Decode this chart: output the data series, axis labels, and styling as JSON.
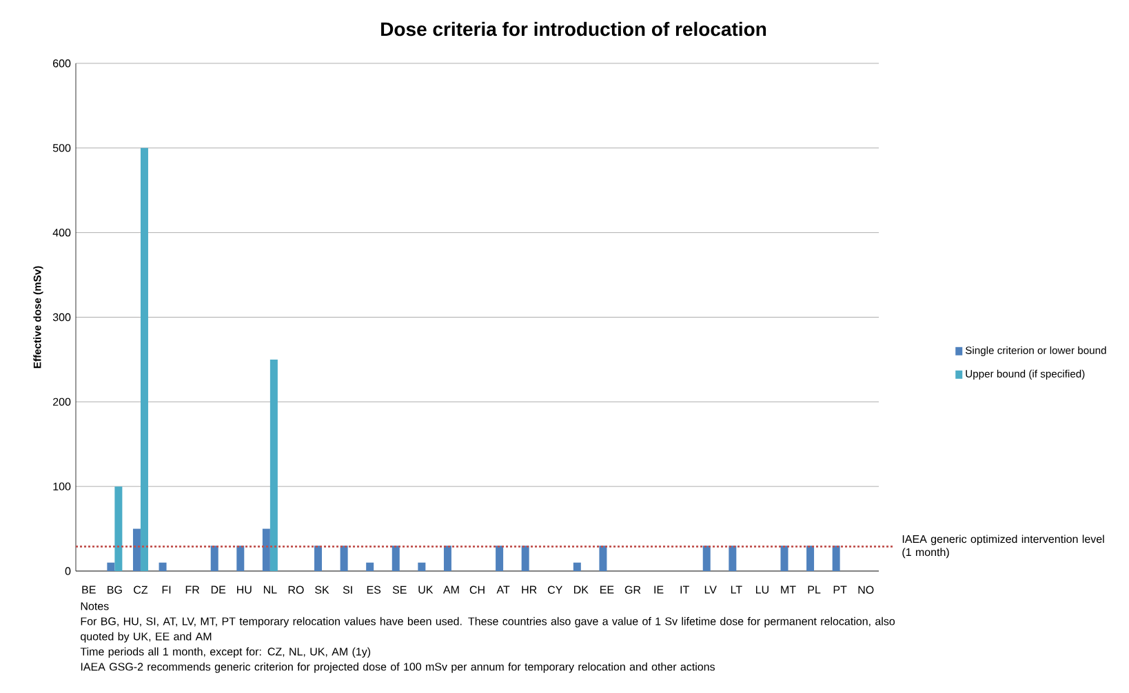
{
  "chart_data": {
    "type": "bar",
    "title": "Dose criteria for introduction of relocation",
    "ylabel": "Effective dose (mSv)",
    "categories": [
      "BE",
      "BG",
      "CZ",
      "FI",
      "FR",
      "DE",
      "HU",
      "NL",
      "RO",
      "SK",
      "SI",
      "ES",
      "SE",
      "UK",
      "AM",
      "CH",
      "AT",
      "HR",
      "CY",
      "DK",
      "EE",
      "GR",
      "IE",
      "IT",
      "LV",
      "LT",
      "LU",
      "MT",
      "PL",
      "PT",
      "NO"
    ],
    "series": [
      {
        "name": "Single criterion or lower bound",
        "color": "#4f81bd",
        "values": [
          null,
          10,
          50,
          10,
          null,
          30,
          30,
          50,
          null,
          30,
          30,
          10,
          30,
          10,
          30,
          null,
          30,
          30,
          null,
          10,
          30,
          null,
          null,
          null,
          30,
          30,
          null,
          30,
          30,
          30,
          null
        ]
      },
      {
        "name": "Upper bound (if specified)",
        "color": "#4bacc6",
        "values": [
          null,
          100,
          500,
          null,
          null,
          null,
          null,
          250,
          null,
          null,
          null,
          null,
          null,
          null,
          null,
          null,
          null,
          null,
          null,
          null,
          null,
          null,
          null,
          null,
          null,
          null,
          null,
          null,
          null,
          null,
          null
        ]
      }
    ],
    "ylim": [
      0,
      600
    ],
    "yticks": [
      0,
      100,
      200,
      300,
      400,
      500,
      600
    ],
    "grid": "y",
    "legend": "right",
    "ref_lines": [
      {
        "axis": "y",
        "value": 29,
        "label": "IAEA generic optimized intervention level (1 month)",
        "color": "#c0504d",
        "line_style": "dotted"
      }
    ],
    "annotations": [
      "Notes",
      "For BG, HU, SI, AT, LV, MT, PT temporary relocation values have been used. These countries also gave a value of 1 Sv lifetime dose for permanent relocation, also quoted by UK, EE and AM",
      "Time periods all 1 month, except for: CZ, NL, UK, AM (1y)",
      "IAEA GSG-2 recommends generic criterion for projected dose of 100 mSv per annum for temporary relocation and other actions"
    ]
  }
}
